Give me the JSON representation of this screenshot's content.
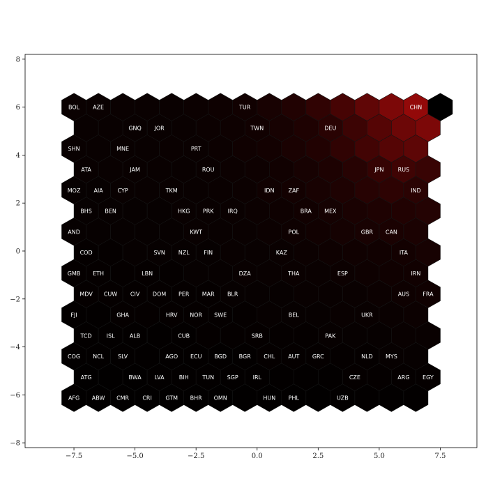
{
  "chart_data": {
    "type": "heatmap",
    "subtype": "hexagonal self-organizing map",
    "title": "",
    "xlabel": "",
    "ylabel": "",
    "xlim": [
      -9.5,
      9.0
    ],
    "ylim": [
      -8.2,
      8.2
    ],
    "xticks": [
      -7.5,
      -5.0,
      -2.5,
      0.0,
      2.5,
      5.0,
      7.5
    ],
    "xtick_labels": [
      "−7.5",
      "−5.0",
      "−2.5",
      "0.0",
      "2.5",
      "5.0",
      "7.5"
    ],
    "yticks": [
      -8,
      -6,
      -4,
      -2,
      0,
      2,
      4,
      6,
      8
    ],
    "ytick_labels": [
      "−8",
      "−6",
      "−4",
      "−2",
      "0",
      "2",
      "4",
      "6",
      "8"
    ],
    "grid": false,
    "colormap": [
      "#000000",
      "#1a0202",
      "#550505",
      "#9b0a0a"
    ],
    "grid_layout": {
      "rows": 15,
      "cols": 16,
      "x0": -7.5,
      "y0": 6.0,
      "dx": 1.0,
      "dy": -0.866,
      "odd_row_offset": 0.5
    },
    "rows": [
      {
        "y": 6.0,
        "x": [
          -7.5,
          -6.5,
          -5.5,
          -4.5,
          -3.5,
          -2.5,
          -1.5,
          -0.5,
          0.5,
          1.5,
          2.5,
          3.5,
          4.5,
          5.5,
          6.5,
          7.5
        ],
        "values": [
          0.06,
          0.06,
          0.06,
          0.06,
          0.06,
          0.07,
          0.08,
          0.1,
          0.14,
          0.2,
          0.3,
          0.45,
          0.62,
          0.8,
          0.95,
          0
        ],
        "labels": [
          "BOL",
          "AZE",
          "",
          "",
          "",
          "",
          "",
          "TUR",
          "",
          "",
          "",
          "",
          "",
          "",
          "CHN",
          ""
        ]
      },
      {
        "y": 5.134,
        "x": [
          -7.0,
          -6.0,
          -5.0,
          -4.0,
          -3.0,
          -2.0,
          -1.0,
          0.0,
          1.0,
          2.0,
          3.0,
          4.0,
          5.0,
          6.0,
          7.0
        ],
        "values": [
          0.05,
          0.05,
          0.05,
          0.05,
          0.06,
          0.07,
          0.08,
          0.1,
          0.13,
          0.18,
          0.25,
          0.38,
          0.55,
          0.7,
          0.8
        ],
        "labels": [
          "",
          "",
          "GNQ",
          "JOR",
          "",
          "",
          "",
          "TWN",
          "",
          "",
          "DEU",
          "",
          "",
          "",
          ""
        ]
      },
      {
        "y": 4.268,
        "x": [
          -7.5,
          -6.5,
          -5.5,
          -4.5,
          -3.5,
          -2.5,
          -1.5,
          -0.5,
          0.5,
          1.5,
          2.5,
          3.5,
          4.5,
          5.5,
          6.5
        ],
        "values": [
          0.05,
          0.05,
          0.05,
          0.05,
          0.06,
          0.06,
          0.07,
          0.09,
          0.11,
          0.15,
          0.2,
          0.3,
          0.42,
          0.55,
          0.6
        ],
        "labels": [
          "SHN",
          "",
          "MNE",
          "",
          "",
          "PRT",
          "",
          "",
          "",
          "",
          "",
          "",
          "",
          "",
          ""
        ]
      },
      {
        "y": 3.402,
        "x": [
          -7.0,
          -6.0,
          -5.0,
          -4.0,
          -3.0,
          -2.0,
          -1.0,
          0.0,
          1.0,
          2.0,
          3.0,
          4.0,
          5.0,
          6.0,
          7.0
        ],
        "values": [
          0.05,
          0.05,
          0.05,
          0.05,
          0.05,
          0.06,
          0.07,
          0.08,
          0.1,
          0.13,
          0.17,
          0.24,
          0.33,
          0.4,
          0.35
        ],
        "labels": [
          "ATA",
          "",
          "JAM",
          "",
          "",
          "ROU",
          "",
          "",
          "",
          "",
          "",
          "",
          "JPN",
          "RUS",
          ""
        ]
      },
      {
        "y": 2.536,
        "x": [
          -7.5,
          -6.5,
          -5.5,
          -4.5,
          -3.5,
          -2.5,
          -1.5,
          -0.5,
          0.5,
          1.5,
          2.5,
          3.5,
          4.5,
          5.5,
          6.5
        ],
        "values": [
          0.04,
          0.04,
          0.05,
          0.05,
          0.05,
          0.05,
          0.06,
          0.07,
          0.09,
          0.11,
          0.14,
          0.18,
          0.24,
          0.28,
          0.26
        ],
        "labels": [
          "MOZ",
          "AIA",
          "CYP",
          "",
          "TKM",
          "",
          "",
          "",
          "IDN",
          "ZAF",
          "",
          "",
          "",
          "",
          "IND"
        ]
      },
      {
        "y": 1.67,
        "x": [
          -7.0,
          -6.0,
          -5.0,
          -4.0,
          -3.0,
          -2.0,
          -1.0,
          0.0,
          1.0,
          2.0,
          3.0,
          4.0,
          5.0,
          6.0,
          7.0
        ],
        "values": [
          0.04,
          0.04,
          0.04,
          0.04,
          0.05,
          0.05,
          0.06,
          0.07,
          0.08,
          0.1,
          0.12,
          0.15,
          0.18,
          0.2,
          0.22
        ],
        "labels": [
          "BHS",
          "BEN",
          "",
          "",
          "HKG",
          "PRK",
          "IRQ",
          "",
          "",
          "BRA",
          "MEX",
          "",
          "",
          "",
          ""
        ]
      },
      {
        "y": 0.804,
        "x": [
          -7.5,
          -6.5,
          -5.5,
          -4.5,
          -3.5,
          -2.5,
          -1.5,
          -0.5,
          0.5,
          1.5,
          2.5,
          3.5,
          4.5,
          5.5,
          6.5
        ],
        "values": [
          0.04,
          0.04,
          0.04,
          0.04,
          0.04,
          0.05,
          0.05,
          0.06,
          0.07,
          0.08,
          0.1,
          0.12,
          0.14,
          0.15,
          0.16
        ],
        "labels": [
          "AND",
          "",
          "",
          "",
          "",
          "KWT",
          "",
          "",
          "",
          "POL",
          "",
          "",
          "GBR",
          "CAN",
          ""
        ]
      },
      {
        "y": -0.062,
        "x": [
          -7.0,
          -6.0,
          -5.0,
          -4.0,
          -3.0,
          -2.0,
          -1.0,
          0.0,
          1.0,
          2.0,
          3.0,
          4.0,
          5.0,
          6.0,
          7.0
        ],
        "values": [
          0.03,
          0.03,
          0.04,
          0.04,
          0.04,
          0.04,
          0.05,
          0.05,
          0.06,
          0.07,
          0.08,
          0.09,
          0.1,
          0.11,
          0.13
        ],
        "labels": [
          "COD",
          "",
          "",
          "SVN",
          "NZL",
          "FIN",
          "",
          "",
          "KAZ",
          "",
          "",
          "",
          "",
          "ITA",
          ""
        ]
      },
      {
        "y": -0.928,
        "x": [
          -7.5,
          -6.5,
          -5.5,
          -4.5,
          -3.5,
          -2.5,
          -1.5,
          -0.5,
          0.5,
          1.5,
          2.5,
          3.5,
          4.5,
          5.5,
          6.5
        ],
        "values": [
          0.03,
          0.03,
          0.03,
          0.03,
          0.03,
          0.04,
          0.04,
          0.05,
          0.05,
          0.06,
          0.06,
          0.07,
          0.08,
          0.09,
          0.1
        ],
        "labels": [
          "GMB",
          "ETH",
          "",
          "LBN",
          "",
          "",
          "",
          "DZA",
          "",
          "THA",
          "",
          "ESP",
          "",
          "",
          "IRN"
        ]
      },
      {
        "y": -1.794,
        "x": [
          -7.0,
          -6.0,
          -5.0,
          -4.0,
          -3.0,
          -2.0,
          -1.0,
          0.0,
          1.0,
          2.0,
          3.0,
          4.0,
          5.0,
          6.0,
          7.0
        ],
        "values": [
          0.03,
          0.03,
          0.03,
          0.03,
          0.03,
          0.03,
          0.04,
          0.04,
          0.04,
          0.05,
          0.05,
          0.06,
          0.07,
          0.08,
          0.09
        ],
        "labels": [
          "MDV",
          "CUW",
          "CIV",
          "DOM",
          "PER",
          "MAR",
          "BLR",
          "",
          "",
          "",
          "",
          "",
          "",
          "AUS",
          "FRA"
        ]
      },
      {
        "y": -2.66,
        "x": [
          -7.5,
          -6.5,
          -5.5,
          -4.5,
          -3.5,
          -2.5,
          -1.5,
          -0.5,
          0.5,
          1.5,
          2.5,
          3.5,
          4.5,
          5.5,
          6.5
        ],
        "values": [
          0.02,
          0.02,
          0.03,
          0.03,
          0.03,
          0.03,
          0.03,
          0.03,
          0.04,
          0.04,
          0.04,
          0.05,
          0.05,
          0.06,
          0.07
        ],
        "labels": [
          "FJI",
          "",
          "GHA",
          "",
          "HRV",
          "NOR",
          "SWE",
          "",
          "",
          "BEL",
          "",
          "",
          "UKR",
          "",
          ""
        ]
      },
      {
        "y": -3.526,
        "x": [
          -7.0,
          -6.0,
          -5.0,
          -4.0,
          -3.0,
          -2.0,
          -1.0,
          0.0,
          1.0,
          2.0,
          3.0,
          4.0,
          5.0,
          6.0,
          7.0
        ],
        "values": [
          0.02,
          0.02,
          0.02,
          0.02,
          0.02,
          0.03,
          0.03,
          0.03,
          0.03,
          0.03,
          0.04,
          0.04,
          0.04,
          0.05,
          0.05
        ],
        "labels": [
          "TCD",
          "ISL",
          "ALB",
          "",
          "CUB",
          "",
          "",
          "SRB",
          "",
          "",
          "PAK",
          "",
          "",
          "",
          ""
        ]
      },
      {
        "y": -4.392,
        "x": [
          -7.5,
          -6.5,
          -5.5,
          -4.5,
          -3.5,
          -2.5,
          -1.5,
          -0.5,
          0.5,
          1.5,
          2.5,
          3.5,
          4.5,
          5.5,
          6.5
        ],
        "values": [
          0.02,
          0.02,
          0.02,
          0.02,
          0.02,
          0.02,
          0.02,
          0.02,
          0.03,
          0.03,
          0.03,
          0.03,
          0.03,
          0.04,
          0.04
        ],
        "labels": [
          "COG",
          "NCL",
          "SLV",
          "",
          "AGO",
          "ECU",
          "BGD",
          "BGR",
          "CHL",
          "AUT",
          "GRC",
          "",
          "NLD",
          "MYS",
          ""
        ]
      },
      {
        "y": -5.258,
        "x": [
          -7.0,
          -6.0,
          -5.0,
          -4.0,
          -3.0,
          -2.0,
          -1.0,
          0.0,
          1.0,
          2.0,
          3.0,
          4.0,
          5.0,
          6.0,
          7.0
        ],
        "values": [
          0.01,
          0.01,
          0.01,
          0.02,
          0.02,
          0.02,
          0.02,
          0.02,
          0.02,
          0.02,
          0.02,
          0.03,
          0.03,
          0.03,
          0.03
        ],
        "labels": [
          "ATG",
          "",
          "BWA",
          "LVA",
          "BIH",
          "TUN",
          "SGP",
          "IRL",
          "",
          "",
          "",
          "CZE",
          "",
          "ARG",
          "EGY"
        ]
      },
      {
        "y": -6.124,
        "x": [
          -7.5,
          -6.5,
          -5.5,
          -4.5,
          -3.5,
          -2.5,
          -1.5,
          -0.5,
          0.5,
          1.5,
          2.5,
          3.5,
          4.5,
          5.5,
          6.5
        ],
        "values": [
          0.01,
          0.01,
          0.01,
          0.01,
          0.01,
          0.01,
          0.01,
          0.01,
          0.01,
          0.01,
          0.01,
          0.02,
          0.02,
          0.02,
          0.02
        ],
        "labels": [
          "AFG",
          "ABW",
          "CMR",
          "CRI",
          "GTM",
          "BHR",
          "OMN",
          "",
          "HUN",
          "PHL",
          "",
          "UZB",
          "",
          "",
          ""
        ]
      }
    ]
  }
}
